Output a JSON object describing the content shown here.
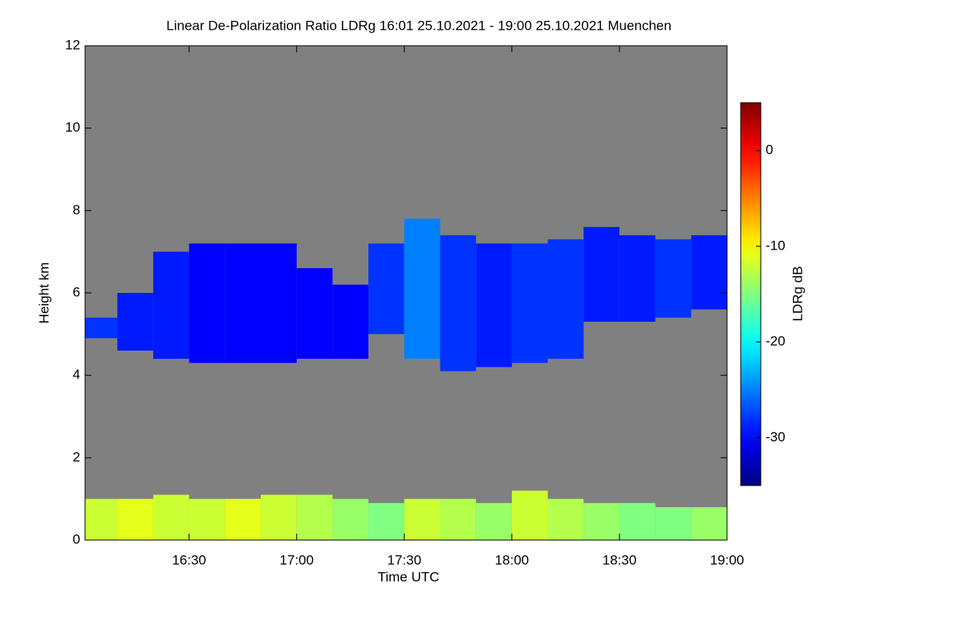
{
  "chart_data": {
    "type": "heatmap",
    "title": "Linear De-Polarization Ratio LDRg   16:01 25.10.2021 - 19:00 25.10.2021 Muenchen",
    "xlabel": "Time UTC",
    "ylabel": "Height km",
    "xlim": [
      "16:01",
      "19:00"
    ],
    "xticks": [
      "16:30",
      "17:00",
      "17:30",
      "18:00",
      "18:30",
      "19:00"
    ],
    "ylim": [
      0,
      12
    ],
    "yticks": [
      0,
      2,
      4,
      6,
      8,
      10,
      12
    ],
    "background": "#808080",
    "colormap": "jet",
    "colorbar": {
      "label": "LDRg dB",
      "lim": [
        -35,
        5
      ],
      "ticks": [
        0,
        -10,
        -20,
        -30
      ]
    },
    "x": [
      "16:05",
      "16:15",
      "16:25",
      "16:35",
      "16:45",
      "16:55",
      "17:05",
      "17:15",
      "17:25",
      "17:35",
      "17:45",
      "17:55",
      "18:05",
      "18:15",
      "18:25",
      "18:35",
      "18:45",
      "18:55"
    ],
    "cloud": {
      "base": [
        4.9,
        4.6,
        4.4,
        4.3,
        4.3,
        4.3,
        4.4,
        4.4,
        5.0,
        4.4,
        4.1,
        4.2,
        4.3,
        4.4,
        5.3,
        5.3,
        5.4,
        5.6
      ],
      "top": [
        5.4,
        6.0,
        7.0,
        7.2,
        7.2,
        7.2,
        6.6,
        6.2,
        7.2,
        7.8,
        7.4,
        7.2,
        7.2,
        7.3,
        7.6,
        7.4,
        7.3,
        7.4
      ],
      "values": [
        -28,
        -29,
        -29,
        -30,
        -30,
        -30,
        -30,
        -30,
        -28,
        -25,
        -28,
        -29,
        -28,
        -28,
        -29,
        -29,
        -28,
        -29
      ]
    },
    "boundary_layer": {
      "base": [
        0,
        0,
        0,
        0,
        0,
        0,
        0,
        0,
        0,
        0,
        0,
        0,
        0,
        0,
        0,
        0,
        0,
        0
      ],
      "top": [
        1.0,
        1.0,
        1.1,
        1.0,
        1.0,
        1.1,
        1.1,
        1.0,
        0.9,
        1.0,
        1.0,
        0.9,
        1.2,
        1.0,
        0.9,
        0.9,
        0.8,
        0.8
      ],
      "values": [
        -12,
        -11,
        -12,
        -12,
        -11,
        -12,
        -13,
        -14,
        -15,
        -12,
        -13,
        -14,
        -12,
        -13,
        -14,
        -15,
        -15,
        -14
      ]
    }
  }
}
